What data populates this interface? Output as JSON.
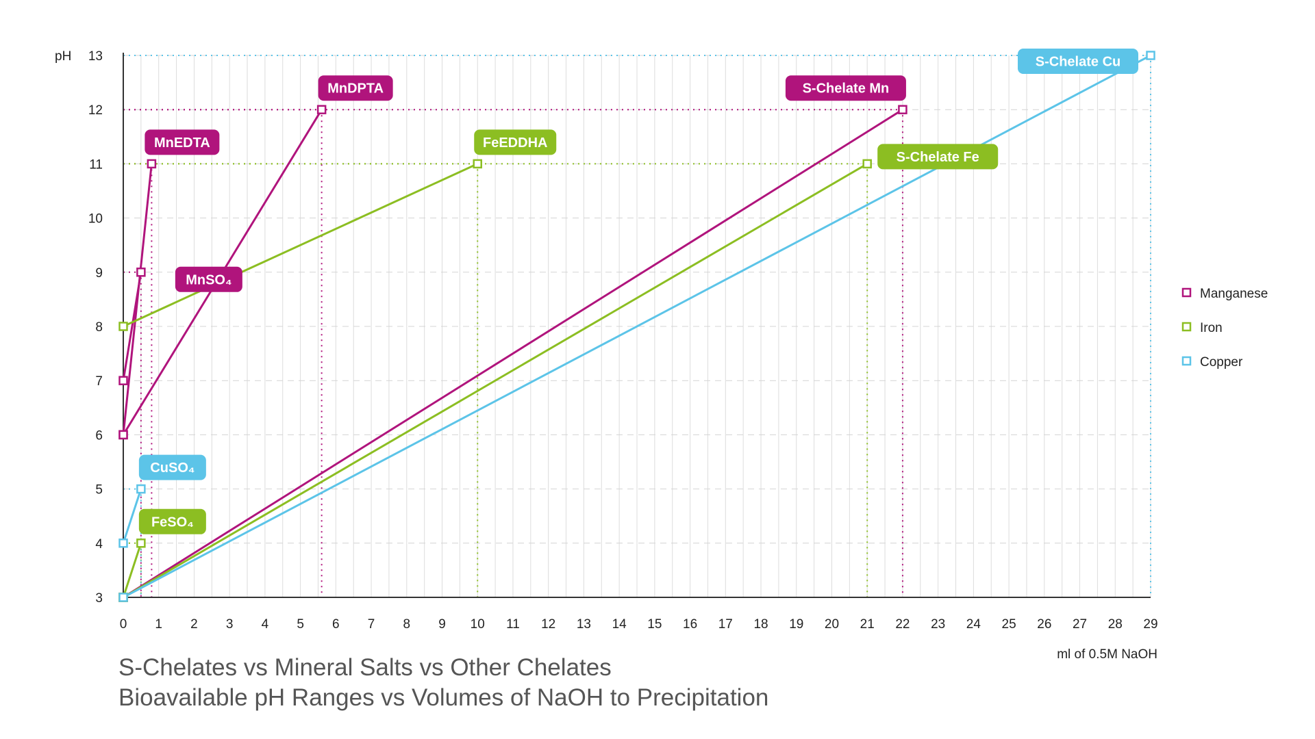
{
  "chart_data": {
    "type": "line",
    "title": "S-Chelates vs Mineral Salts vs Other Chelates",
    "subtitle": "Bioavailable pH Ranges vs Volumes of NaOH to Precipitation",
    "xlabel": "ml of 0.5M NaOH",
    "ylabel": "pH",
    "xlim": [
      0,
      29
    ],
    "ylim": [
      3,
      13
    ],
    "x_ticks": [
      "0",
      "1",
      "2",
      "3",
      "4",
      "5",
      "6",
      "7",
      "8",
      "9",
      "10",
      "11",
      "12",
      "13",
      "14",
      "15",
      "16",
      "17",
      "18",
      "19",
      "20",
      "21",
      "22",
      "23",
      "24",
      "25",
      "26",
      "27",
      "28",
      "29"
    ],
    "y_ticks": [
      "3",
      "4",
      "5",
      "6",
      "7",
      "8",
      "9",
      "10",
      "11",
      "12",
      "13"
    ],
    "legend": [
      {
        "name": "Manganese",
        "color": "#B0147C"
      },
      {
        "name": "Iron",
        "color": "#8CBE22"
      },
      {
        "name": "Copper",
        "color": "#5CC4E8"
      }
    ],
    "series": [
      {
        "name": "MnSO₄",
        "group": "Manganese",
        "label": "MnSO₄",
        "color": "#B0147C",
        "points": [
          [
            0,
            7
          ],
          [
            0.5,
            9
          ]
        ],
        "label_anchor": "right"
      },
      {
        "name": "MnEDTA",
        "group": "Manganese",
        "label": "MnEDTA",
        "color": "#B0147C",
        "points": [
          [
            0,
            6
          ],
          [
            0.8,
            11
          ]
        ],
        "label_anchor": "above-right"
      },
      {
        "name": "MnDPTA",
        "group": "Manganese",
        "label": "MnDPTA",
        "color": "#B0147C",
        "points": [
          [
            0,
            6
          ],
          [
            5.6,
            12
          ]
        ],
        "label_anchor": "above-right"
      },
      {
        "name": "S-Chelate Mn",
        "group": "Manganese",
        "label": "S-Chelate Mn",
        "color": "#B0147C",
        "points": [
          [
            0,
            3
          ],
          [
            22,
            12
          ]
        ],
        "label_anchor": "above-left"
      },
      {
        "name": "FeSO₄",
        "group": "Iron",
        "label": "FeSO₄",
        "color": "#8CBE22",
        "points": [
          [
            0,
            3
          ],
          [
            0.5,
            4
          ]
        ],
        "label_anchor": "above-right"
      },
      {
        "name": "FeEDDHA",
        "group": "Iron",
        "label": "FeEDDHA",
        "color": "#8CBE22",
        "points": [
          [
            0,
            8
          ],
          [
            10,
            11
          ]
        ],
        "label_anchor": "above"
      },
      {
        "name": "S-Chelate Fe",
        "group": "Iron",
        "label": "S-Chelate Fe",
        "color": "#8CBE22",
        "points": [
          [
            0,
            3
          ],
          [
            21,
            11
          ]
        ],
        "label_anchor": "right"
      },
      {
        "name": "CuSO₄",
        "group": "Copper",
        "label": "CuSO₄",
        "color": "#5CC4E8",
        "points": [
          [
            0,
            4
          ],
          [
            0.5,
            5
          ]
        ],
        "label_anchor": "above-right"
      },
      {
        "name": "S-Chelate Cu",
        "group": "Copper",
        "label": "S-Chelate Cu",
        "color": "#5CC4E8",
        "points": [
          [
            0,
            3
          ],
          [
            29,
            13
          ]
        ],
        "label_anchor": "left"
      }
    ]
  }
}
